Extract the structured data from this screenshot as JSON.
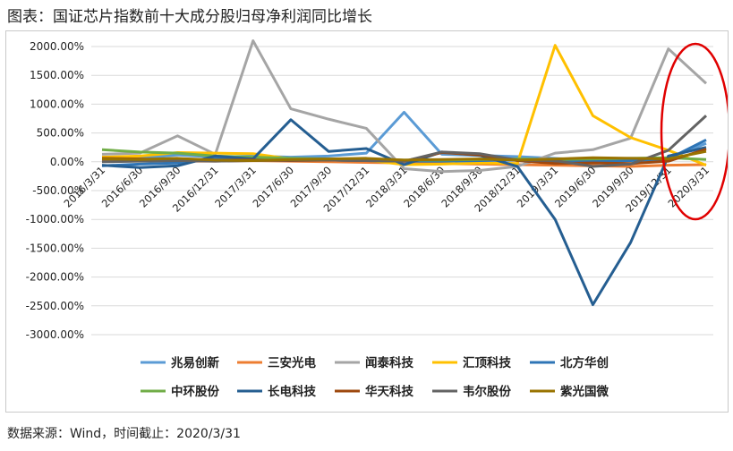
{
  "title": "图表：国证芯片指数前十大成分股归母净利润同比增长",
  "source": "数据来源：Wind，时间截止：2020/3/31",
  "chart_data": {
    "type": "line",
    "title": "",
    "xlabel": "",
    "ylabel": "",
    "ylim": [
      -3000,
      2000
    ],
    "yticks": [
      -3000,
      -2500,
      -2000,
      -1500,
      -1000,
      -500,
      0,
      500,
      1000,
      1500,
      2000
    ],
    "ytick_labels": [
      "-3000.00%",
      "-2500.00%",
      "-2000.00%",
      "-1500.00%",
      "-1000.00%",
      "-500.00%",
      "0.00%",
      "500.00%",
      "1000.00%",
      "1500.00%",
      "2000.00%"
    ],
    "grid": "horizontal",
    "legend_position": "bottom",
    "categories": [
      "2016/3/31",
      "2016/6/30",
      "2016/9/30",
      "2016/12/31",
      "2017/3/31",
      "2017/6/30",
      "2017/9/30",
      "2017/12/31",
      "2018/3/31",
      "2018/6/30",
      "2018/9/30",
      "2018/12/31",
      "2019/3/31",
      "2019/6/30",
      "2019/9/30",
      "2019/12/31",
      "2020/3/31"
    ],
    "series": [
      {
        "name": "兆易创新",
        "color": "#5B9BD5",
        "values": [
          30,
          60,
          120,
          80,
          100,
          80,
          100,
          150,
          860,
          130,
          110,
          90,
          60,
          20,
          -40,
          60,
          320
        ]
      },
      {
        "name": "三安光电",
        "color": "#ED7D31",
        "values": [
          40,
          20,
          10,
          10,
          20,
          10,
          0,
          -10,
          -20,
          -30,
          -40,
          -50,
          -60,
          -70,
          -80,
          -60,
          -50
        ]
      },
      {
        "name": "闻泰科技",
        "color": "#A5A5A5",
        "values": [
          130,
          150,
          450,
          130,
          2100,
          920,
          740,
          580,
          -120,
          -170,
          -150,
          -80,
          150,
          210,
          410,
          1960,
          1360
        ]
      },
      {
        "name": "汇顶科技",
        "color": "#FFC000",
        "values": [
          80,
          100,
          160,
          150,
          140,
          50,
          40,
          30,
          -50,
          -40,
          -20,
          -30,
          2020,
          800,
          420,
          200,
          -60
        ]
      },
      {
        "name": "北方华创",
        "color": "#2E75B6",
        "values": [
          -70,
          -40,
          -20,
          50,
          60,
          40,
          30,
          20,
          10,
          10,
          20,
          30,
          0,
          10,
          20,
          50,
          380
        ]
      },
      {
        "name": "中环股份",
        "color": "#70AD47",
        "values": [
          210,
          170,
          150,
          100,
          80,
          60,
          50,
          40,
          30,
          30,
          40,
          50,
          40,
          50,
          60,
          70,
          40
        ]
      },
      {
        "name": "长电科技",
        "color": "#255E91",
        "values": [
          -60,
          -100,
          -70,
          100,
          50,
          730,
          180,
          230,
          -50,
          170,
          110,
          -80,
          -1000,
          -2480,
          -1400,
          100,
          250
        ]
      },
      {
        "name": "华天科技",
        "color": "#9E480E",
        "values": [
          60,
          50,
          40,
          30,
          30,
          20,
          30,
          20,
          10,
          160,
          120,
          20,
          -30,
          -20,
          -30,
          10,
          220
        ]
      },
      {
        "name": "韦尔股份",
        "color": "#636363",
        "values": [
          0,
          10,
          20,
          10,
          20,
          30,
          30,
          20,
          10,
          170,
          140,
          30,
          20,
          -80,
          -40,
          200,
          800
        ]
      },
      {
        "name": "紫光国微",
        "color": "#997300",
        "values": [
          50,
          40,
          60,
          30,
          20,
          40,
          50,
          60,
          30,
          40,
          50,
          30,
          50,
          70,
          60,
          50,
          180
        ]
      }
    ]
  },
  "annotation": {
    "type": "ellipse",
    "color": "#E00000"
  }
}
